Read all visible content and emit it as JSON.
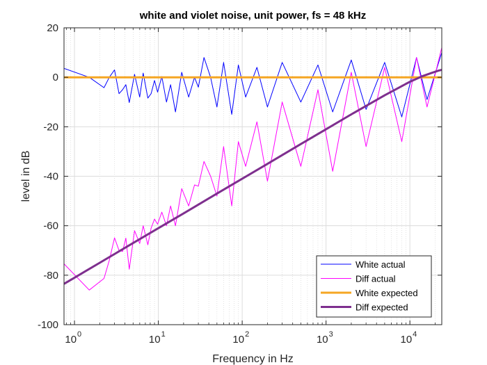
{
  "chart_data": {
    "type": "line",
    "title": "white and violet noise, unit power, fs = 48 kHz",
    "xlabel": "Frequency in Hz",
    "ylabel": "level in dB",
    "xscale": "log",
    "xlim": [
      0.75,
      24000
    ],
    "ylim": [
      -100,
      20
    ],
    "yticks": [
      20,
      0,
      -20,
      -40,
      -60,
      -80,
      -100
    ],
    "xticks": [
      {
        "value": 1,
        "base": "10",
        "exp": "0"
      },
      {
        "value": 10,
        "base": "10",
        "exp": "1"
      },
      {
        "value": 100,
        "base": "10",
        "exp": "2"
      },
      {
        "value": 1000,
        "base": "10",
        "exp": "3"
      },
      {
        "value": 10000,
        "base": "10",
        "exp": "4"
      }
    ],
    "grid": true,
    "legend_position": "bottom-right",
    "series": [
      {
        "name": "White actual",
        "color": "#0000ff",
        "style": "thin",
        "x": [
          0.75,
          1.5,
          2.25,
          2.6,
          3.0,
          3.4,
          3.75,
          4.1,
          4.5,
          5.2,
          6.0,
          6.6,
          7.5,
          8.2,
          9.0,
          9.8,
          11,
          12.5,
          14,
          16,
          19,
          23,
          27,
          30,
          35,
          42,
          50,
          60,
          75,
          90,
          110,
          150,
          200,
          300,
          500,
          800,
          1200,
          2000,
          3000,
          5000,
          8000,
          12000,
          16000,
          24000
        ],
        "y": [
          3.6,
          0,
          -4.2,
          0,
          3.0,
          -6.6,
          -5.0,
          -3.0,
          -10.2,
          1.2,
          -8.0,
          1.7,
          -8.4,
          -6.6,
          -1.3,
          -6.0,
          0.3,
          -10.0,
          -3.0,
          -14.0,
          2.0,
          -8.0,
          0,
          -4.0,
          8.0,
          0,
          -12.0,
          6.0,
          -15.0,
          5.0,
          -8.0,
          4.0,
          -12.0,
          6.0,
          -10.0,
          5.0,
          -14.0,
          7.0,
          -13.0,
          6.0,
          -16.0,
          8.0,
          -9.0,
          10.0
        ]
      },
      {
        "name": "Diff actual",
        "color": "#ff00ff",
        "style": "thin",
        "x": [
          0.75,
          1.5,
          2.25,
          2.6,
          3.0,
          3.4,
          3.75,
          4.1,
          4.5,
          5.2,
          6.0,
          6.6,
          7.5,
          8.2,
          9.0,
          9.8,
          11,
          12.5,
          14,
          16,
          19,
          23,
          27,
          30,
          35,
          42,
          50,
          60,
          75,
          90,
          110,
          150,
          200,
          300,
          500,
          800,
          1200,
          2000,
          3000,
          5000,
          8000,
          12000,
          16000,
          24000
        ],
        "y": [
          -75.4,
          -86.0,
          -81.3,
          -74.0,
          -64.9,
          -70.0,
          -70.4,
          -65.0,
          -77.6,
          -62.0,
          -67.2,
          -60.0,
          -67.7,
          -61.0,
          -57.3,
          -59.4,
          -54.5,
          -60.0,
          -52.0,
          -60.0,
          -45.0,
          -52.0,
          -43.5,
          -44.0,
          -34.0,
          -40.0,
          -48.0,
          -28.0,
          -52.0,
          -26.0,
          -36.0,
          -18.0,
          -42.0,
          -10.0,
          -36.0,
          -5.0,
          -38.0,
          2.0,
          -28.0,
          4.0,
          -26.0,
          8.0,
          -12.0,
          12.0
        ]
      },
      {
        "name": "White expected",
        "color": "#f5a623",
        "style": "thick",
        "x": [
          0.75,
          24000
        ],
        "y": [
          0,
          0
        ]
      },
      {
        "name": "Diff expected",
        "color": "#7e2f8e",
        "style": "thick",
        "x": [
          0.75,
          1,
          2,
          5,
          10,
          20,
          50,
          100,
          200,
          500,
          1000,
          2000,
          5000,
          10000,
          14000,
          18000,
          22000,
          24000
        ],
        "y": [
          -83.5,
          -81.0,
          -75.0,
          -67.0,
          -61.0,
          -55.0,
          -47.0,
          -41.0,
          -35.0,
          -27.0,
          -21.0,
          -15.0,
          -7.3,
          -1.8,
          0.4,
          1.7,
          2.7,
          3.0
        ]
      }
    ]
  }
}
